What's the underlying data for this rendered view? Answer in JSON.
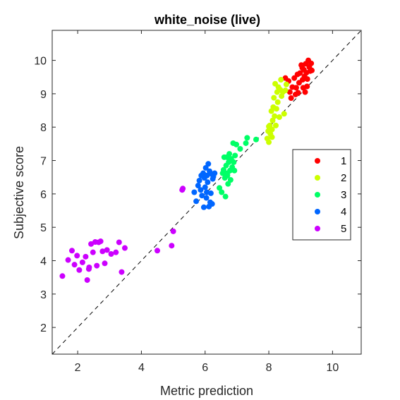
{
  "chart_data": {
    "type": "scatter",
    "title": "white_noise (live)",
    "xlabel": "Metric prediction",
    "ylabel": "Subjective score",
    "xlim": [
      1.2,
      10.9
    ],
    "ylim": [
      1.2,
      10.9
    ],
    "xticks": [
      2,
      4,
      6,
      8,
      10
    ],
    "yticks": [
      2,
      3,
      4,
      5,
      6,
      7,
      8,
      9,
      10
    ],
    "reference_line": {
      "style": "dashed",
      "color": "#000000",
      "from": [
        1.2,
        1.2
      ],
      "to": [
        10.9,
        10.9
      ]
    },
    "legend": {
      "position": "right",
      "box": true
    },
    "grid": false,
    "series": [
      {
        "name": "1",
        "color": "#ff0000",
        "points": [
          [
            8.52,
            9.47
          ],
          [
            8.62,
            9.38
          ],
          [
            8.66,
            9.05
          ],
          [
            8.7,
            8.87
          ],
          [
            8.74,
            9.2
          ],
          [
            8.8,
            9.47
          ],
          [
            8.86,
            9.18
          ],
          [
            8.92,
            9.03
          ],
          [
            8.95,
            9.33
          ],
          [
            8.98,
            9.62
          ],
          [
            9.02,
            9.86
          ],
          [
            9.06,
            9.42
          ],
          [
            9.08,
            9.18
          ],
          [
            9.1,
            9.72
          ],
          [
            9.12,
            9.52
          ],
          [
            9.14,
            9.05
          ],
          [
            9.16,
            9.9
          ],
          [
            9.18,
            9.63
          ],
          [
            9.21,
            9.44
          ],
          [
            9.24,
            10.0
          ],
          [
            9.27,
            9.8
          ],
          [
            9.3,
            9.68
          ],
          [
            9.33,
            9.91
          ],
          [
            9.05,
            9.78
          ],
          [
            8.9,
            9.58
          ],
          [
            9.2,
            9.22
          ],
          [
            8.84,
            8.98
          ],
          [
            9.35,
            9.7
          ]
        ]
      },
      {
        "name": "2",
        "color": "#ccff00",
        "points": [
          [
            7.95,
            7.66
          ],
          [
            7.98,
            7.88
          ],
          [
            8.0,
            7.55
          ],
          [
            8.03,
            8.05
          ],
          [
            8.05,
            7.8
          ],
          [
            8.08,
            8.48
          ],
          [
            8.1,
            7.93
          ],
          [
            8.12,
            8.2
          ],
          [
            8.14,
            8.6
          ],
          [
            8.16,
            8.88
          ],
          [
            8.18,
            8.33
          ],
          [
            8.2,
            9.3
          ],
          [
            8.22,
            8.05
          ],
          [
            8.24,
            8.55
          ],
          [
            8.26,
            9.05
          ],
          [
            8.28,
            8.75
          ],
          [
            8.3,
            9.2
          ],
          [
            8.33,
            8.3
          ],
          [
            8.36,
            9.12
          ],
          [
            8.38,
            9.42
          ],
          [
            8.4,
            8.93
          ],
          [
            8.44,
            9.05
          ],
          [
            8.48,
            8.4
          ],
          [
            8.52,
            9.1
          ],
          [
            8.55,
            9.28
          ],
          [
            8.1,
            7.7
          ],
          [
            8.0,
            8.02
          ]
        ]
      },
      {
        "name": "3",
        "color": "#00ff66",
        "points": [
          [
            6.45,
            6.18
          ],
          [
            6.52,
            6.05
          ],
          [
            6.58,
            6.72
          ],
          [
            6.62,
            6.48
          ],
          [
            6.64,
            5.92
          ],
          [
            6.66,
            6.85
          ],
          [
            6.68,
            7.1
          ],
          [
            6.7,
            6.62
          ],
          [
            6.72,
            6.3
          ],
          [
            6.74,
            6.95
          ],
          [
            6.76,
            7.2
          ],
          [
            6.78,
            6.7
          ],
          [
            6.8,
            6.42
          ],
          [
            6.82,
            7.05
          ],
          [
            6.85,
            6.8
          ],
          [
            6.88,
            7.52
          ],
          [
            6.9,
            6.95
          ],
          [
            6.94,
            7.15
          ],
          [
            6.98,
            7.48
          ],
          [
            7.1,
            7.35
          ],
          [
            7.28,
            7.52
          ],
          [
            7.32,
            7.68
          ],
          [
            7.6,
            7.63
          ],
          [
            6.6,
            7.1
          ],
          [
            6.7,
            6.55
          ],
          [
            6.92,
            6.7
          ],
          [
            6.55,
            6.62
          ]
        ]
      },
      {
        "name": "4",
        "color": "#0066ff",
        "points": [
          [
            5.66,
            6.05
          ],
          [
            5.72,
            5.78
          ],
          [
            5.78,
            6.25
          ],
          [
            5.82,
            6.4
          ],
          [
            5.86,
            6.12
          ],
          [
            5.9,
            5.95
          ],
          [
            5.94,
            6.62
          ],
          [
            5.96,
            5.6
          ],
          [
            5.98,
            6.48
          ],
          [
            6.0,
            6.2
          ],
          [
            6.02,
            6.78
          ],
          [
            6.04,
            5.88
          ],
          [
            6.06,
            6.55
          ],
          [
            6.08,
            6.35
          ],
          [
            6.1,
            6.9
          ],
          [
            6.12,
            5.62
          ],
          [
            6.14,
            6.68
          ],
          [
            6.16,
            5.75
          ],
          [
            6.18,
            6.02
          ],
          [
            6.2,
            6.6
          ],
          [
            6.22,
            5.7
          ],
          [
            6.24,
            6.45
          ],
          [
            6.26,
            6.52
          ],
          [
            6.3,
            6.62
          ],
          [
            5.88,
            6.55
          ],
          [
            6.05,
            6.05
          ]
        ]
      },
      {
        "name": "5",
        "color": "#cc00ff",
        "points": [
          [
            1.52,
            3.54
          ],
          [
            1.7,
            4.02
          ],
          [
            1.82,
            4.3
          ],
          [
            1.9,
            3.88
          ],
          [
            1.98,
            4.15
          ],
          [
            2.05,
            3.72
          ],
          [
            2.15,
            3.95
          ],
          [
            2.25,
            4.12
          ],
          [
            2.3,
            3.42
          ],
          [
            2.36,
            3.8
          ],
          [
            2.42,
            4.5
          ],
          [
            2.48,
            4.25
          ],
          [
            2.55,
            4.56
          ],
          [
            2.6,
            3.85
          ],
          [
            2.66,
            4.55
          ],
          [
            2.72,
            4.58
          ],
          [
            2.78,
            4.28
          ],
          [
            2.85,
            3.92
          ],
          [
            2.92,
            4.32
          ],
          [
            3.05,
            4.2
          ],
          [
            3.2,
            4.25
          ],
          [
            3.3,
            4.55
          ],
          [
            3.38,
            3.66
          ],
          [
            3.48,
            4.38
          ],
          [
            4.5,
            4.3
          ],
          [
            4.95,
            4.45
          ],
          [
            5.0,
            4.88
          ],
          [
            5.28,
            6.12
          ],
          [
            5.3,
            6.16
          ],
          [
            2.35,
            3.75
          ]
        ]
      }
    ]
  }
}
